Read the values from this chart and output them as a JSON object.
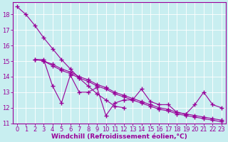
{
  "background_color": "#c8eef0",
  "line_color": "#990099",
  "marker": "+",
  "markersize": 4,
  "linewidth": 0.8,
  "xlabel": "Windchill (Refroidissement éolien,°C)",
  "xlabel_fontsize": 6.5,
  "tick_fontsize": 6,
  "xlim": [
    -0.5,
    23.5
  ],
  "ylim": [
    11,
    18.8
  ],
  "yticks": [
    11,
    12,
    13,
    14,
    15,
    16,
    17,
    18
  ],
  "xticks": [
    0,
    1,
    2,
    3,
    4,
    5,
    6,
    7,
    8,
    9,
    10,
    11,
    12,
    13,
    14,
    15,
    16,
    17,
    18,
    19,
    20,
    21,
    22,
    23
  ],
  "series": [
    [
      18.5,
      18.0,
      17.3,
      16.5,
      15.8,
      15.1,
      14.5,
      13.9,
      13.4,
      12.9,
      12.5,
      12.1,
      12.0,
      null,
      null,
      null,
      null,
      null,
      null,
      null,
      null,
      null,
      null,
      null
    ],
    [
      null,
      null,
      15.1,
      15.1,
      13.4,
      12.3,
      14.1,
      13.0,
      13.0,
      13.3,
      11.5,
      12.3,
      12.5,
      12.5,
      13.2,
      12.4,
      12.2,
      12.2,
      11.7,
      11.6,
      12.2,
      13.0,
      12.2,
      12.0
    ],
    [
      null,
      null,
      15.1,
      15.0,
      14.8,
      14.5,
      14.3,
      14.0,
      13.8,
      13.5,
      13.3,
      13.0,
      12.8,
      12.6,
      12.4,
      12.2,
      12.0,
      11.9,
      11.7,
      11.6,
      11.5,
      11.4,
      11.3,
      11.2
    ],
    [
      null,
      null,
      null,
      15.0,
      14.7,
      14.4,
      14.2,
      13.9,
      13.7,
      13.4,
      13.2,
      12.9,
      12.7,
      12.5,
      12.3,
      12.1,
      11.9,
      11.8,
      11.6,
      11.5,
      11.4,
      11.3,
      11.2,
      11.1
    ]
  ]
}
